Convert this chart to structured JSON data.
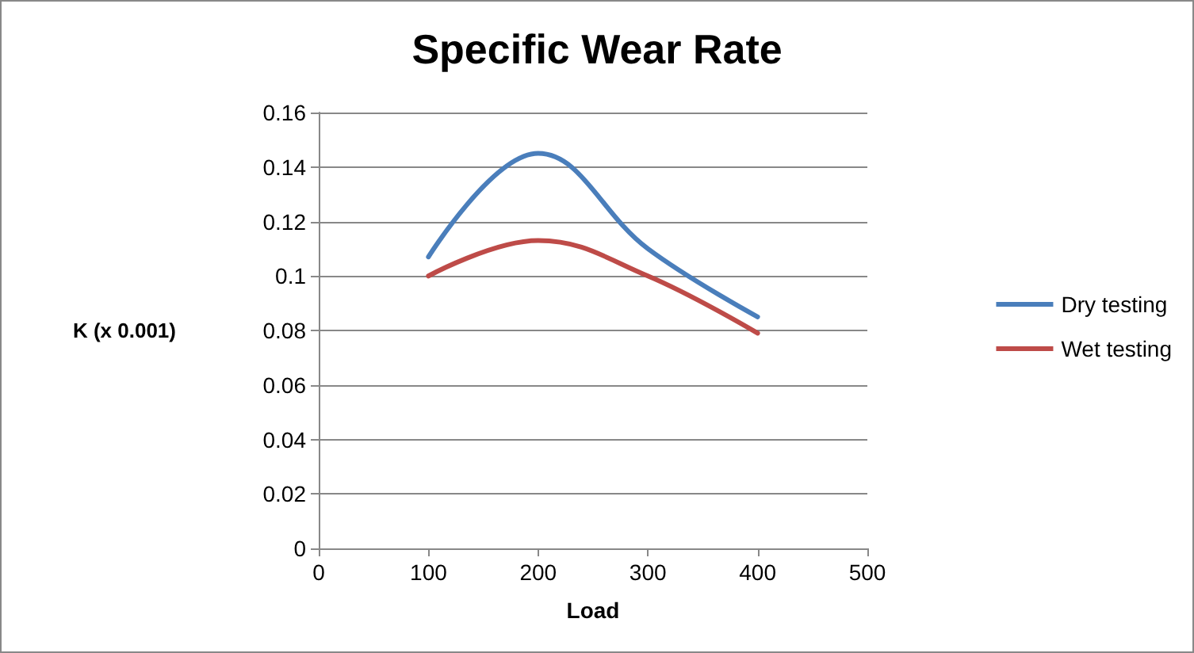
{
  "chart_data": {
    "type": "line",
    "title": "Specific Wear Rate",
    "xlabel": "Load",
    "ylabel": "K (x 0.001)",
    "x": [
      100,
      200,
      300,
      400
    ],
    "series": [
      {
        "name": "Dry testing",
        "color": "#4a7ebb",
        "values": [
          0.107,
          0.145,
          0.11,
          0.085
        ]
      },
      {
        "name": "Wet testing",
        "color": "#be4b48",
        "values": [
          0.1,
          0.113,
          0.1,
          0.079
        ]
      }
    ],
    "xlim": [
      0,
      500
    ],
    "xticks": [
      0,
      100,
      200,
      300,
      400,
      500
    ],
    "ylim": [
      0,
      0.16
    ],
    "yticks": [
      0,
      0.02,
      0.04,
      0.06,
      0.08,
      0.1,
      0.12,
      0.14,
      0.16
    ],
    "grid": "y",
    "legend": "right",
    "marker": "none",
    "line_style": "solid"
  }
}
